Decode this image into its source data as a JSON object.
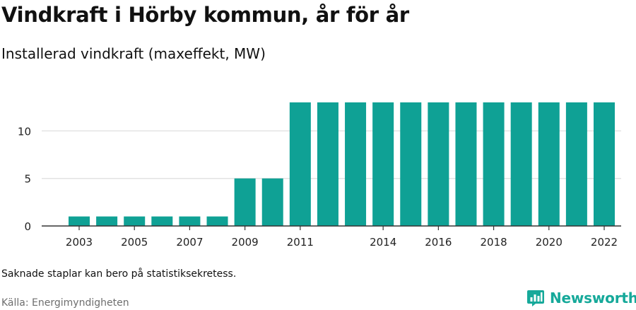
{
  "title": "Vindkraft i Hörby kommun, år för år",
  "subtitle": "Installerad vindkraft (maxeffekt, MW)",
  "note": "Saknade staplar kan bero på statistiksekretess.",
  "source": "Källa: Energimyndigheten",
  "brand": {
    "name": "Newsworthy",
    "icon": "newsworthy-logo-icon",
    "color": "#16a99a"
  },
  "colors": {
    "bar": "#0fa195",
    "grid": "#e3e3e3",
    "axis": "#333333"
  },
  "chart_data": {
    "type": "bar",
    "title": "Vindkraft i Hörby kommun, år för år",
    "subtitle": "Installerad vindkraft (maxeffekt, MW)",
    "xlabel": "",
    "ylabel": "",
    "ylim": [
      0,
      13
    ],
    "yticks": [
      0,
      5,
      10
    ],
    "grid": true,
    "legend": "none",
    "categories": [
      "2003",
      "2004",
      "2005",
      "2006",
      "2007",
      "2008",
      "2009",
      "2010",
      "2011",
      "2012",
      "2013",
      "2014",
      "2015",
      "2016",
      "2017",
      "2018",
      "2019",
      "2020",
      "2021",
      "2022"
    ],
    "xtick_labels": [
      "2003",
      "2005",
      "2007",
      "2009",
      "2011",
      "2014",
      "2016",
      "2018",
      "2020",
      "2022"
    ],
    "values": [
      1,
      1,
      1,
      1,
      1,
      1,
      5,
      5,
      13,
      13,
      13,
      13,
      13,
      13,
      13,
      13,
      13,
      13,
      13,
      13
    ]
  }
}
